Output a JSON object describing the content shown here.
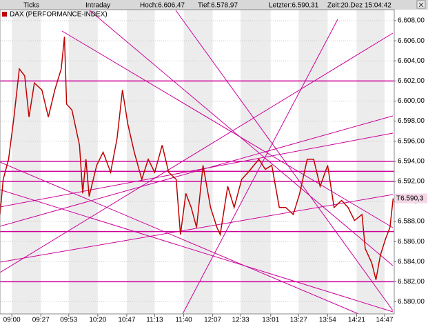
{
  "header": {
    "mode": "Ticks",
    "range": "Intraday",
    "high": "Hoch:6.606,47",
    "low": "Tief:6.578,97",
    "last": "Letzter:6.590,31",
    "time": "Zeit:20.Dez 15:04:42"
  },
  "chart_data": {
    "type": "line",
    "legend": "DAX (PERFORMANCE-INDEX)",
    "last_label": "T6.590,3",
    "series": [
      {
        "name": "DAX (PERFORMANCE-INDEX)",
        "color": "#c00000",
        "x": [
          "08:49",
          "08:52",
          "08:57",
          "09:02",
          "09:07",
          "09:12",
          "09:16",
          "09:21",
          "09:28",
          "09:34",
          "09:40",
          "09:46",
          "09:49",
          "09:51",
          "09:56",
          "10:03",
          "10:06",
          "10:09",
          "10:12",
          "10:19",
          "10:25",
          "10:32",
          "10:38",
          "10:43",
          "10:48",
          "10:54",
          "11:01",
          "11:07",
          "11:13",
          "11:20",
          "11:26",
          "11:33",
          "11:37",
          "11:42",
          "11:47",
          "11:52",
          "11:58",
          "12:05",
          "12:11",
          "12:14",
          "12:21",
          "12:27",
          "12:34",
          "12:40",
          "12:50",
          "12:56",
          "13:02",
          "13:09",
          "13:15",
          "13:22",
          "13:28",
          "13:35",
          "13:41",
          "13:47",
          "13:54",
          "14:00",
          "14:07",
          "14:13",
          "14:19",
          "14:26",
          "14:29",
          "14:35",
          "14:39",
          "14:43",
          "14:48",
          "14:52",
          "14:55"
        ],
        "values": [
          6588.7,
          6592.2,
          6594.2,
          6598.4,
          6603.2,
          6602.5,
          6598.4,
          6601.8,
          6601.1,
          6598.4,
          6601.1,
          6603.2,
          6606.4,
          6599.7,
          6599.1,
          6595.6,
          6590.8,
          6594.2,
          6590.5,
          6593.6,
          6594.9,
          6592.9,
          6596.3,
          6601.1,
          6597.7,
          6594.9,
          6592.2,
          6594.2,
          6592.9,
          6595.6,
          6592.9,
          6592.2,
          6586.7,
          6590.8,
          6589.4,
          6587.4,
          6593.6,
          6589.4,
          6587.4,
          6586.7,
          6591.5,
          6589.4,
          6592.2,
          6592.9,
          6594.2,
          6593.2,
          6593.6,
          6589.4,
          6589.4,
          6588.7,
          6590.8,
          6594.2,
          6594.2,
          6591.5,
          6593.6,
          6589.4,
          6590.1,
          6589.4,
          6588.1,
          6588.7,
          6585.3,
          6583.9,
          6582.2,
          6584.6,
          6586.3,
          6587.4,
          6590.3
        ]
      }
    ],
    "hlines": {
      "color": "#cc0099",
      "values": [
        6602,
        6594,
        6593,
        6592,
        6587,
        6582
      ]
    },
    "xlim": [
      "08:49",
      "14:56"
    ],
    "xticks": [
      "09:00",
      "09:27",
      "09:53",
      "10:20",
      "10:47",
      "11:13",
      "11:40",
      "12:07",
      "12:33",
      "13:01",
      "13:27",
      "13:54",
      "14:21",
      "14:47"
    ],
    "ylim": [
      6578.8,
      6609.1
    ],
    "yticks": [
      {
        "value": 6580,
        "label": "6.580,00"
      },
      {
        "value": 6582,
        "label": "6.582,00"
      },
      {
        "value": 6584,
        "label": "6.584,00"
      },
      {
        "value": 6586,
        "label": "6.586,00"
      },
      {
        "value": 6588,
        "label": "6.588,00"
      },
      {
        "value": 6590,
        "label": "6.590,00"
      },
      {
        "value": 6592,
        "label": "6.592,00"
      },
      {
        "value": 6594,
        "label": "6.594,00"
      },
      {
        "value": 6596,
        "label": "6.596,00"
      },
      {
        "value": 6598,
        "label": "6.598,00"
      },
      {
        "value": 6600,
        "label": "6.600,00"
      },
      {
        "value": 6602,
        "label": "6.602,00"
      },
      {
        "value": 6604,
        "label": "6.604,00"
      },
      {
        "value": 6606,
        "label": "6.606,00"
      },
      {
        "value": 6608,
        "label": "6.608,00"
      }
    ],
    "grid": true
  }
}
